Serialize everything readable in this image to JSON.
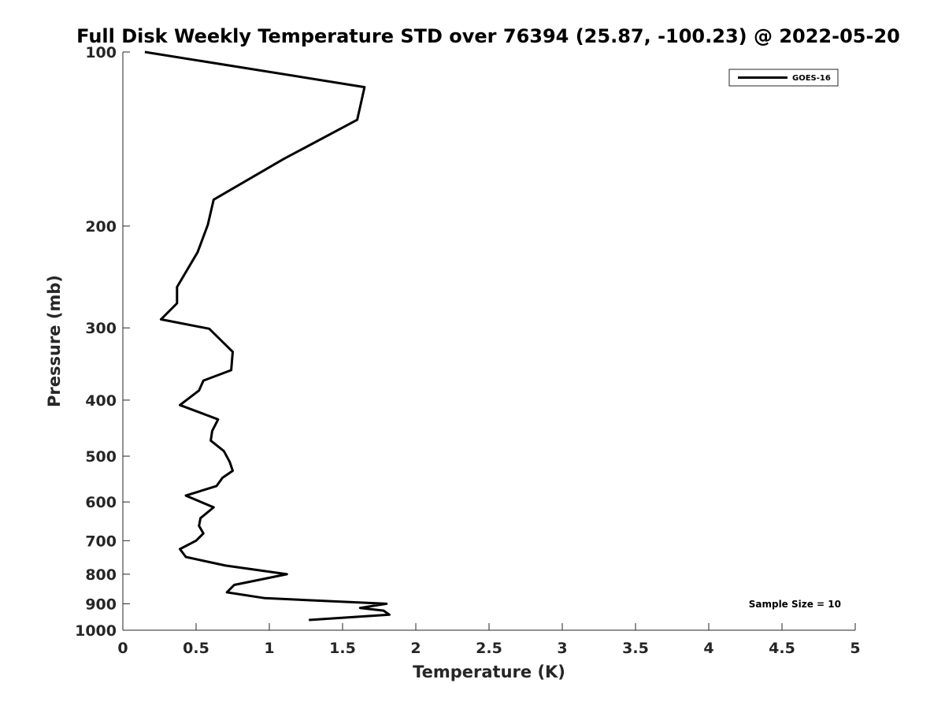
{
  "chart_data": {
    "type": "line",
    "title": "Full Disk Weekly Temperature STD over 76394 (25.87, -100.23) @ 2022-05-20",
    "xlabel": "Temperature (K)",
    "ylabel": "Pressure (mb)",
    "xlim": [
      0,
      5
    ],
    "ylim": [
      100,
      1000
    ],
    "y_scale": "log",
    "y_reversed": true,
    "grid": false,
    "x_ticks": [
      "0",
      "0.5",
      "1",
      "1.5",
      "2",
      "2.5",
      "3",
      "3.5",
      "4",
      "4.5",
      "5"
    ],
    "y_ticks": [
      "100",
      "200",
      "300",
      "400",
      "500",
      "600",
      "700",
      "800",
      "900",
      "1000"
    ],
    "legend": {
      "position": "top-right",
      "entries": [
        "GOES-16"
      ]
    },
    "annotation": "Sample Size = 10",
    "series": [
      {
        "name": "GOES-16",
        "color": "#000000",
        "x": [
          0.15,
          1.65,
          1.6,
          1.1,
          0.62,
          0.58,
          0.51,
          0.37,
          0.37,
          0.26,
          0.59,
          0.75,
          0.74,
          0.55,
          0.52,
          0.39,
          0.65,
          0.61,
          0.6,
          0.69,
          0.73,
          0.75,
          0.68,
          0.64,
          0.43,
          0.62,
          0.53,
          0.52,
          0.55,
          0.5,
          0.39,
          0.43,
          0.7,
          1.12,
          0.76,
          0.71,
          0.97,
          1.8,
          1.62,
          1.78,
          1.82,
          1.27
        ],
        "y": [
          100,
          115,
          131,
          153,
          180,
          199,
          222,
          255,
          272,
          290,
          301,
          330,
          355,
          370,
          385,
          408,
          432,
          452,
          470,
          490,
          512,
          530,
          545,
          563,
          585,
          613,
          640,
          660,
          680,
          700,
          724,
          747,
          773,
          800,
          835,
          860,
          880,
          900,
          915,
          925,
          940,
          960
        ]
      }
    ]
  }
}
